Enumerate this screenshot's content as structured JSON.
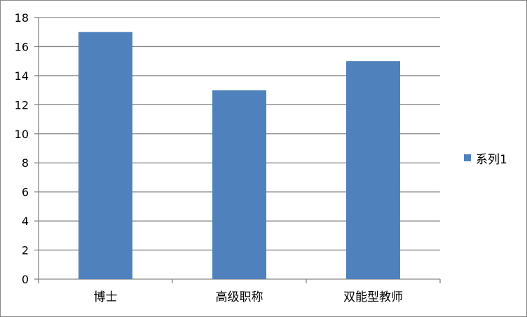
{
  "chart_data": {
    "type": "bar",
    "title": "",
    "xlabel": "",
    "ylabel": "",
    "categories": [
      "博士",
      "高级职称",
      "双能型教师"
    ],
    "series": [
      {
        "name": "系列1",
        "values": [
          17,
          13,
          15
        ],
        "color": "#4f81bd"
      }
    ],
    "ylim": [
      0,
      18
    ],
    "yticks": [
      0,
      2,
      4,
      6,
      8,
      10,
      12,
      14,
      16,
      18
    ],
    "grid": true,
    "legend": "right"
  }
}
